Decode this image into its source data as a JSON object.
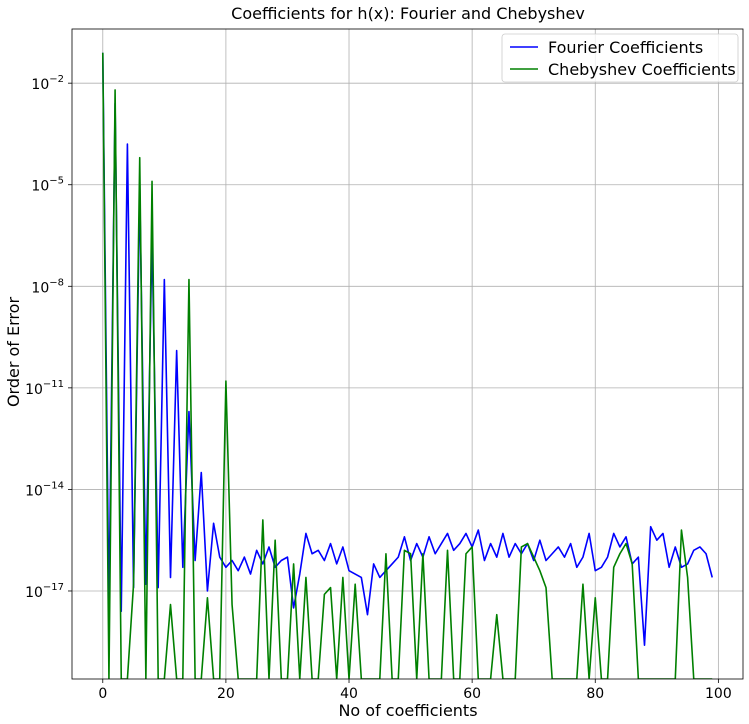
{
  "chart_data": {
    "type": "line",
    "title": "Coefficients for h(x): Fourier and Chebyshev",
    "xlabel": "No of coefficients",
    "ylabel": "Order of Error",
    "xlim": [
      -5,
      104
    ],
    "ylim_log10": [
      -19.6,
      -0.4
    ],
    "yscale": "log",
    "grid": true,
    "legend_position": "top-right",
    "x_ticks": [
      0,
      20,
      40,
      60,
      80,
      100
    ],
    "y_ticks": [
      {
        "exp": -2,
        "label": "10",
        "sup": "−2"
      },
      {
        "exp": -5,
        "label": "10",
        "sup": "−5"
      },
      {
        "exp": -8,
        "label": "10",
        "sup": "−8"
      },
      {
        "exp": -11,
        "label": "10",
        "sup": "−11"
      },
      {
        "exp": -14,
        "label": "10",
        "sup": "−14"
      },
      {
        "exp": -17,
        "label": "10",
        "sup": "−17"
      }
    ],
    "colors": {
      "fourier": "#0000ff",
      "chebyshev": "#008000"
    },
    "series": [
      {
        "name": "Fourier Coefficients",
        "key": "fourier",
        "x": [
          0,
          1,
          2,
          3,
          4,
          5,
          6,
          7,
          8,
          9,
          10,
          11,
          12,
          13,
          14,
          15,
          16,
          17,
          18,
          19,
          20,
          21,
          22,
          23,
          24,
          25,
          26,
          27,
          28,
          29,
          30,
          31,
          32,
          33,
          34,
          35,
          36,
          37,
          38,
          39,
          40,
          41,
          42,
          43,
          44,
          45,
          46,
          47,
          48,
          49,
          50,
          51,
          52,
          53,
          54,
          55,
          56,
          57,
          58,
          59,
          60,
          61,
          62,
          63,
          64,
          65,
          66,
          67,
          68,
          69,
          70,
          71,
          72,
          73,
          74,
          75,
          76,
          77,
          78,
          79,
          80,
          81,
          82,
          83,
          84,
          85,
          86,
          87,
          88,
          89,
          90,
          91,
          92,
          93,
          94,
          95,
          96,
          97,
          98,
          99
        ],
        "log10_y": [
          -1.1,
          -17.5,
          -2.6,
          -17.6,
          -3.8,
          -16.9,
          -5.1,
          -16.8,
          -6.5,
          -16.9,
          -7.8,
          -16.6,
          -9.9,
          -16.3,
          -11.7,
          -16.1,
          -13.5,
          -17.0,
          -15.0,
          -16.0,
          -16.3,
          -16.1,
          -16.4,
          -16.0,
          -16.5,
          -15.8,
          -16.2,
          -15.7,
          -16.3,
          -16.1,
          -16.0,
          -17.5,
          -16.5,
          -15.3,
          -15.9,
          -15.8,
          -16.1,
          -15.6,
          -16.2,
          -15.7,
          -16.4,
          -16.5,
          -16.6,
          -17.7,
          -16.2,
          -16.6,
          -16.4,
          -16.2,
          -16.0,
          -15.4,
          -16.1,
          -15.6,
          -16.0,
          -15.4,
          -15.9,
          -15.6,
          -15.3,
          -15.8,
          -15.6,
          -15.3,
          -15.7,
          -15.2,
          -16.1,
          -15.6,
          -16.0,
          -15.3,
          -16.0,
          -15.6,
          -15.9,
          -15.6,
          -16.1,
          -15.5,
          -16.1,
          -15.9,
          -15.7,
          -16.0,
          -15.6,
          -16.3,
          -16.0,
          -15.3,
          -16.4,
          -16.3,
          -16.0,
          -15.3,
          -15.7,
          -15.4,
          -16.2,
          -16.0,
          -18.6,
          -15.1,
          -15.5,
          -15.3,
          -16.3,
          -15.7,
          -16.3,
          -16.2,
          -15.8,
          -15.7,
          -15.9,
          -16.6
        ]
      },
      {
        "name": "Chebyshev Coefficients",
        "key": "chebyshev",
        "x": [
          0,
          1,
          2,
          3,
          4,
          5,
          6,
          7,
          8,
          9,
          10,
          11,
          12,
          13,
          14,
          15,
          16,
          17,
          18,
          19,
          20,
          21,
          22,
          23,
          24,
          25,
          26,
          27,
          28,
          29,
          30,
          31,
          32,
          33,
          34,
          35,
          36,
          37,
          38,
          39,
          40,
          41,
          42,
          43,
          44,
          45,
          46,
          47,
          48,
          49,
          50,
          51,
          52,
          53,
          54,
          55,
          56,
          57,
          58,
          59,
          60,
          61,
          62,
          63,
          64,
          65,
          66,
          67,
          68,
          69,
          70,
          71,
          72,
          73,
          74,
          75,
          76,
          77,
          78,
          79,
          80,
          81,
          82,
          83,
          84,
          85,
          86,
          87,
          88,
          89,
          90,
          91,
          92,
          93,
          94,
          95,
          96,
          97,
          98,
          99
        ],
        "log10_y": [
          -1.1,
          -19.6,
          -2.2,
          -19.6,
          -19.6,
          -16.8,
          -4.2,
          -19.6,
          -4.9,
          -19.6,
          -19.6,
          -17.4,
          -19.6,
          -19.6,
          -7.8,
          -19.6,
          -19.6,
          -17.2,
          -19.6,
          -19.6,
          -10.8,
          -17.4,
          -19.6,
          -19.6,
          -19.6,
          -19.6,
          -14.9,
          -19.6,
          -15.5,
          -19.6,
          -19.6,
          -16.2,
          -19.6,
          -16.6,
          -19.6,
          -19.6,
          -17.1,
          -16.9,
          -19.6,
          -16.6,
          -19.6,
          -16.8,
          -19.6,
          -19.6,
          -19.6,
          -19.6,
          -15.9,
          -19.6,
          -19.6,
          -15.8,
          -15.9,
          -19.6,
          -15.9,
          -19.6,
          -19.6,
          -19.6,
          -15.8,
          -19.6,
          -19.6,
          -15.9,
          -15.7,
          -19.6,
          -19.6,
          -19.6,
          -17.7,
          -19.6,
          -19.6,
          -19.6,
          -15.7,
          -15.6,
          -16.0,
          -16.4,
          -16.9,
          -19.6,
          -19.6,
          -19.6,
          -19.6,
          -19.6,
          -16.8,
          -19.6,
          -17.2,
          -19.6,
          -19.6,
          -16.3,
          -15.9,
          -15.6,
          -16.2,
          -19.6,
          -19.6,
          -19.6,
          -19.6,
          -19.6,
          -19.6,
          -19.6,
          -15.2,
          -16.6,
          -19.6,
          -19.6,
          -19.6,
          -19.6
        ]
      }
    ]
  }
}
